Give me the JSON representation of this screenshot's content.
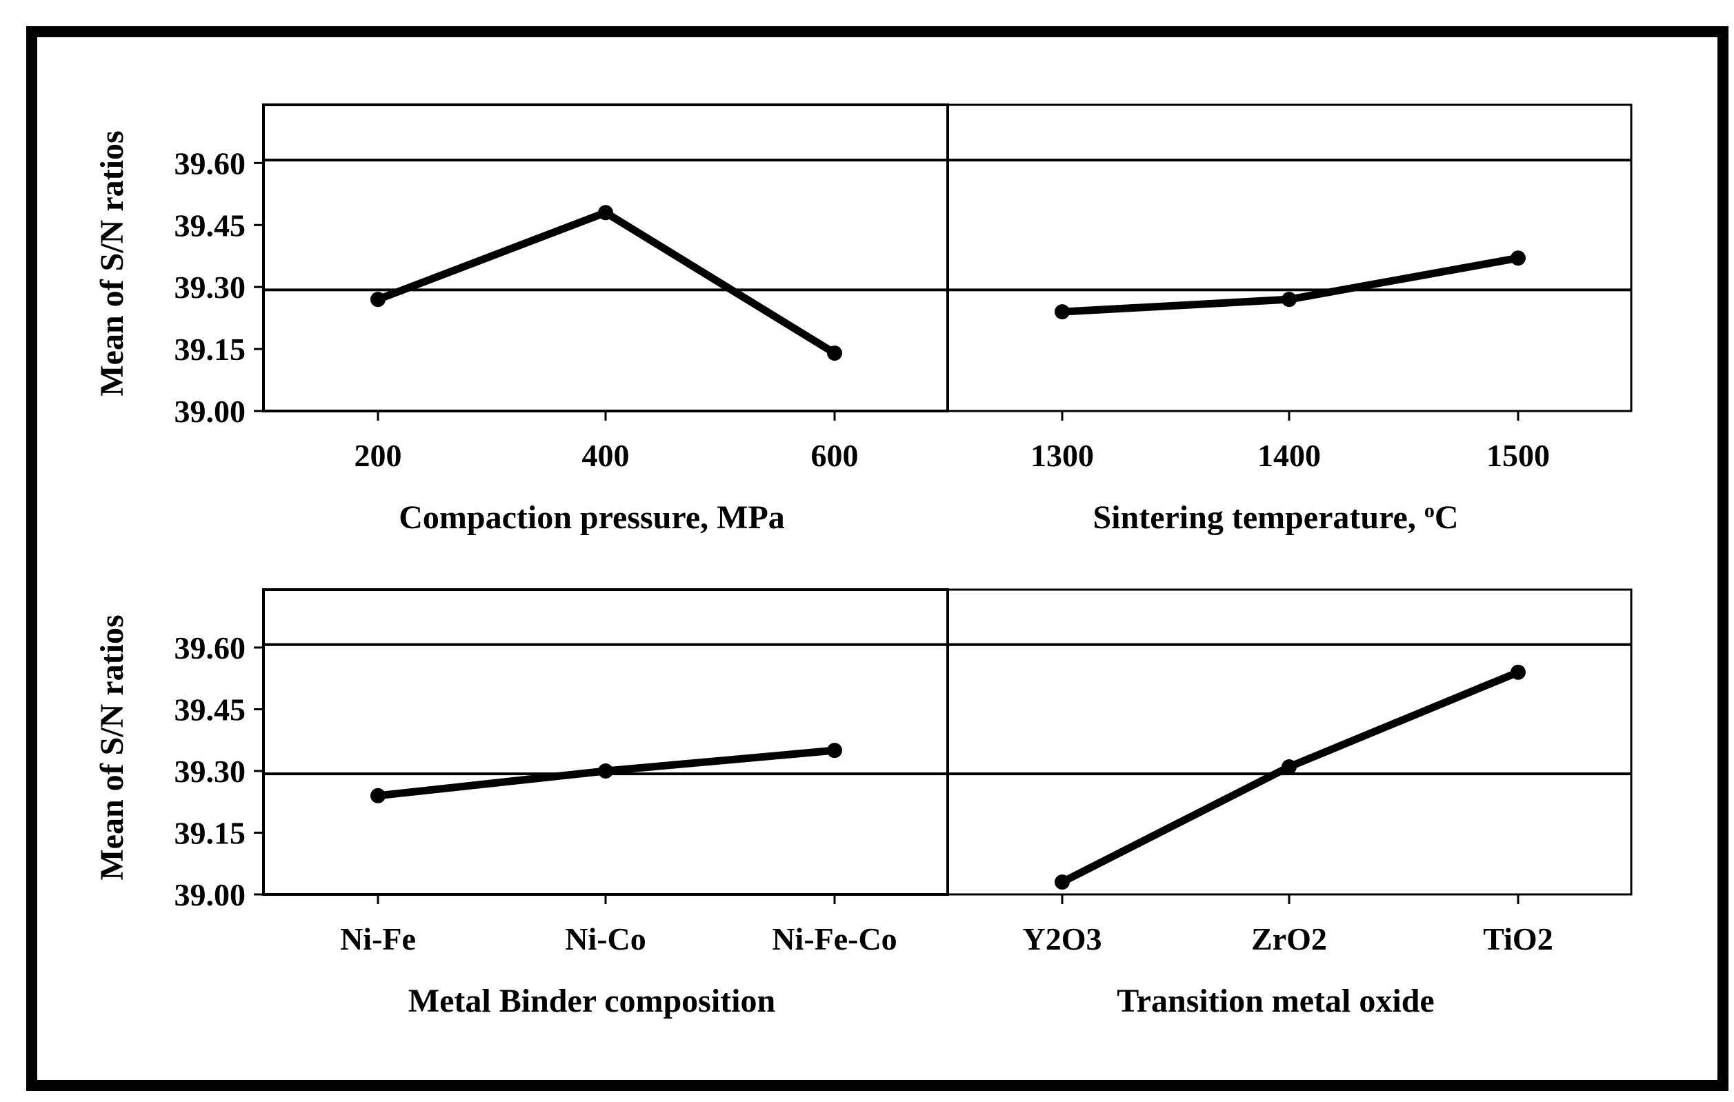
{
  "chart_data": {
    "type": "line",
    "ylabel": "Mean of S/N ratios",
    "ylim": [
      39.0,
      39.75
    ],
    "yticks": [
      "39.00",
      "39.15",
      "39.30",
      "39.45",
      "39.60"
    ],
    "reference_lines": [
      39.293,
      39.607
    ],
    "panels": [
      {
        "xlabel": "Compaction pressure, MPa",
        "xlabel_prefix": "Compaction pressure, MPa",
        "xlabel_sup": "",
        "xlabel_suffix": "",
        "categories": [
          "200",
          "400",
          "600"
        ],
        "values": [
          39.27,
          39.48,
          39.14
        ]
      },
      {
        "xlabel": "Sintering temperature, °C",
        "xlabel_prefix": "Sintering temperature, ",
        "xlabel_sup": "o",
        "xlabel_suffix": "C",
        "categories": [
          "1300",
          "1400",
          "1500"
        ],
        "values": [
          39.24,
          39.27,
          39.37
        ]
      },
      {
        "xlabel": "Metal Binder composition",
        "xlabel_prefix": "Metal Binder composition",
        "xlabel_sup": "",
        "xlabel_suffix": "",
        "categories": [
          "Ni-Fe",
          "Ni-Co",
          "Ni-Fe-Co"
        ],
        "values": [
          39.24,
          39.3,
          39.35
        ]
      },
      {
        "xlabel": "Transition metal oxide",
        "xlabel_prefix": "Transition metal oxide",
        "xlabel_sup": "",
        "xlabel_suffix": "",
        "categories": [
          "Y2O3",
          "ZrO2",
          "TiO2"
        ],
        "values": [
          39.03,
          39.31,
          39.54
        ]
      }
    ]
  }
}
